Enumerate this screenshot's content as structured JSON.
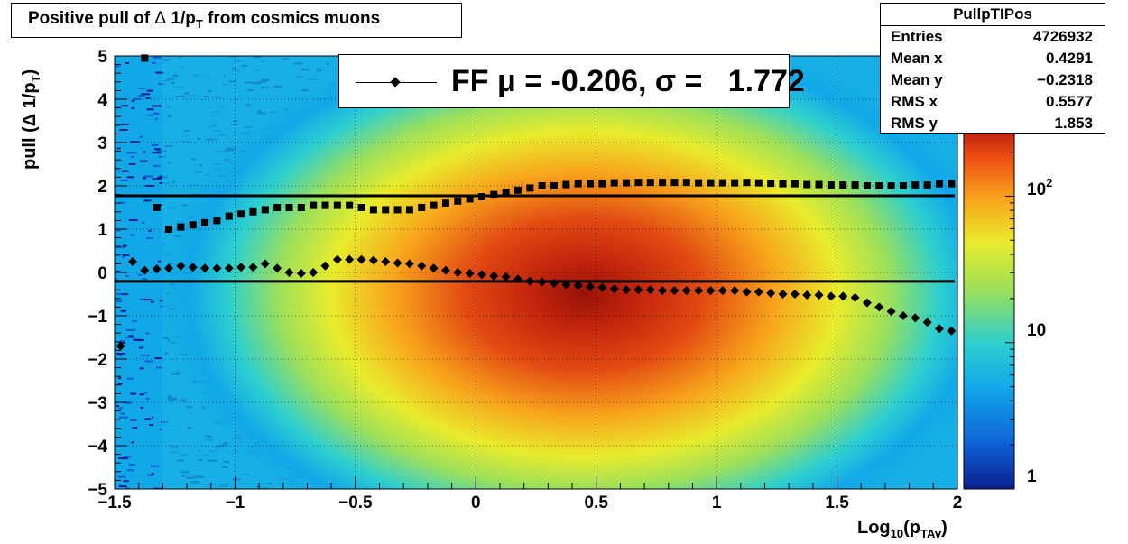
{
  "title_parts": {
    "pre": "Positive pull of ",
    "symbol": "Δ",
    "mid": " 1/p",
    "sub": "T",
    "post": " from cosmics muons"
  },
  "stats_box": {
    "name": "PullpTIPos",
    "rows": [
      {
        "label": "Entries",
        "value": "4726932"
      },
      {
        "label": "Mean x",
        "value": "0.4291"
      },
      {
        "label": "Mean y",
        "value": "−0.2318"
      },
      {
        "label": "RMS x",
        "value": "0.5577"
      },
      {
        "label": "RMS y",
        "value": "1.853"
      }
    ]
  },
  "legend_text": "FF μ = -0.206, σ =   1.772",
  "ylabel_parts": {
    "main": "pull (Δ 1/p",
    "sub": "T",
    "post": ")"
  },
  "xlabel_parts": {
    "main": "Log",
    "sub": "10",
    "mid": "(p",
    "sub2": "TAv",
    "post": ")"
  },
  "colorbar_labels": [
    "1",
    "10",
    "10",
    "2"
  ],
  "chart_data": {
    "type": "heatmap",
    "xlim": [
      -1.5,
      2
    ],
    "ylim": [
      -5,
      5
    ],
    "x_ticks": [
      "−1.5",
      "−1",
      "−0.5",
      "0",
      "0.5",
      "1",
      "1.5",
      "2"
    ],
    "x_tick_values": [
      -1.5,
      -1,
      -0.5,
      0,
      0.5,
      1,
      1.5,
      2
    ],
    "y_ticks": [
      "5",
      "4",
      "3",
      "2",
      "1",
      "0",
      "−1",
      "−2",
      "−3",
      "−4",
      "−5"
    ],
    "y_tick_values": [
      5,
      4,
      3,
      2,
      1,
      0,
      -1,
      -2,
      -3,
      -4,
      -5
    ],
    "z_scale": "log",
    "zlim": [
      1,
      300
    ],
    "grid": true,
    "color_palette": [
      "#0b1e8c",
      "#0f5fd6",
      "#12a8e8",
      "#2ccfd0",
      "#9de05a",
      "#e8ec2c",
      "#f8a41c",
      "#ec4a14",
      "#b01a0a"
    ],
    "density_peak": {
      "x": 0.45,
      "y": -0.5
    },
    "series": [
      {
        "marker": "diamond",
        "x": [
          -1.475,
          -1.425,
          -1.375,
          -1.325,
          -1.275,
          -1.225,
          -1.175,
          -1.125,
          -1.075,
          -1.025,
          -0.975,
          -0.925,
          -0.875,
          -0.825,
          -0.775,
          -0.725,
          -0.675,
          -0.625,
          -0.575,
          -0.525,
          -0.475,
          -0.425,
          -0.375,
          -0.325,
          -0.275,
          -0.225,
          -0.175,
          -0.125,
          -0.075,
          -0.025,
          0.025,
          0.075,
          0.125,
          0.175,
          0.225,
          0.275,
          0.325,
          0.375,
          0.425,
          0.475,
          0.525,
          0.575,
          0.625,
          0.675,
          0.725,
          0.775,
          0.825,
          0.875,
          0.925,
          0.975,
          1.025,
          1.075,
          1.125,
          1.175,
          1.225,
          1.275,
          1.325,
          1.375,
          1.425,
          1.475,
          1.525,
          1.575,
          1.625,
          1.675,
          1.725,
          1.775,
          1.825,
          1.875,
          1.925,
          1.975
        ],
        "y": [
          -1.7,
          0.25,
          0.05,
          0.08,
          0.1,
          0.15,
          0.12,
          0.1,
          0.1,
          0.1,
          0.12,
          0.12,
          0.2,
          0.1,
          0.0,
          -0.02,
          0.0,
          0.15,
          0.3,
          0.3,
          0.3,
          0.28,
          0.25,
          0.22,
          0.2,
          0.15,
          0.1,
          0.05,
          0.0,
          -0.02,
          -0.05,
          -0.08,
          -0.1,
          -0.15,
          -0.2,
          -0.22,
          -0.25,
          -0.28,
          -0.3,
          -0.33,
          -0.35,
          -0.38,
          -0.4,
          -0.4,
          -0.4,
          -0.42,
          -0.42,
          -0.42,
          -0.42,
          -0.42,
          -0.42,
          -0.42,
          -0.45,
          -0.45,
          -0.48,
          -0.5,
          -0.5,
          -0.52,
          -0.52,
          -0.55,
          -0.55,
          -0.58,
          -0.7,
          -0.8,
          -0.9,
          -1.0,
          -1.05,
          -1.15,
          -1.3,
          -1.35
        ]
      },
      {
        "marker": "square",
        "x": [
          -1.375,
          -1.325,
          -1.275,
          -1.225,
          -1.175,
          -1.125,
          -1.075,
          -1.025,
          -0.975,
          -0.925,
          -0.875,
          -0.825,
          -0.775,
          -0.725,
          -0.675,
          -0.625,
          -0.575,
          -0.525,
          -0.475,
          -0.425,
          -0.375,
          -0.325,
          -0.275,
          -0.225,
          -0.175,
          -0.125,
          -0.075,
          -0.025,
          0.025,
          0.075,
          0.125,
          0.175,
          0.225,
          0.275,
          0.325,
          0.375,
          0.425,
          0.475,
          0.525,
          0.575,
          0.625,
          0.675,
          0.725,
          0.775,
          0.825,
          0.875,
          0.925,
          0.975,
          1.025,
          1.075,
          1.125,
          1.175,
          1.225,
          1.275,
          1.325,
          1.375,
          1.425,
          1.475,
          1.525,
          1.575,
          1.625,
          1.675,
          1.725,
          1.775,
          1.825,
          1.875,
          1.925,
          1.975
        ],
        "y": [
          4.95,
          1.5,
          1.0,
          1.05,
          1.1,
          1.15,
          1.2,
          1.3,
          1.35,
          1.4,
          1.45,
          1.5,
          1.5,
          1.5,
          1.55,
          1.55,
          1.55,
          1.55,
          1.5,
          1.45,
          1.45,
          1.45,
          1.45,
          1.5,
          1.55,
          1.6,
          1.65,
          1.7,
          1.75,
          1.8,
          1.85,
          1.9,
          1.95,
          2.0,
          2.0,
          2.03,
          2.05,
          2.05,
          2.05,
          2.07,
          2.07,
          2.08,
          2.08,
          2.08,
          2.08,
          2.08,
          2.07,
          2.07,
          2.07,
          2.07,
          2.08,
          2.07,
          2.06,
          2.05,
          2.05,
          2.03,
          2.03,
          2.02,
          2.02,
          2.02,
          2.0,
          2.0,
          2.0,
          2.0,
          2.02,
          2.02,
          2.05,
          2.05
        ]
      }
    ],
    "hlines": [
      1.772,
      -0.206
    ]
  }
}
